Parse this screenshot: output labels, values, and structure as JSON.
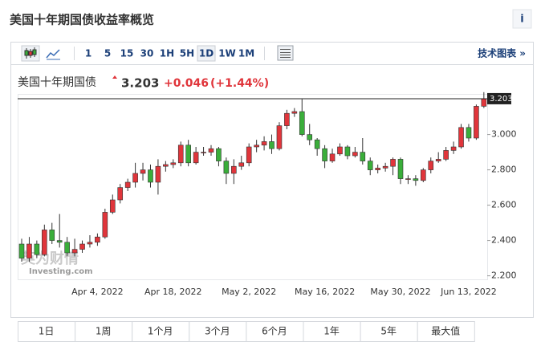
{
  "header": {
    "title": "美国十年期国债收益率概览",
    "info_icon": "i"
  },
  "toolbar": {
    "intervals": [
      "1",
      "5",
      "15",
      "30",
      "1H",
      "5H",
      "1D",
      "1W",
      "1M"
    ],
    "active_interval_index": 6,
    "link": "技术图表 »"
  },
  "quote": {
    "name": "美国十年期国债",
    "price": "3.203",
    "change": "+0.046",
    "change_percent": "(+1.44%)"
  },
  "watermark": {
    "cn": "英为财情",
    "en": "Investing.com"
  },
  "ranges": [
    "1日",
    "1周",
    "1个月",
    "3个月",
    "6个月",
    "1年",
    "5年",
    "最大值"
  ],
  "chart_data": {
    "type": "candlestick",
    "up_color": "#e0353b",
    "down_color": "#3aae3a",
    "categories": [
      null,
      null,
      null,
      null,
      null,
      null,
      null,
      null,
      null,
      null,
      "Apr 4, 2022",
      null,
      null,
      null,
      null,
      null,
      null,
      null,
      null,
      null,
      "Apr 18, 2022",
      null,
      null,
      null,
      null,
      null,
      null,
      null,
      null,
      null,
      "May 2, 2022",
      null,
      null,
      null,
      null,
      null,
      null,
      null,
      null,
      null,
      "May 16, 2022",
      null,
      null,
      null,
      null,
      null,
      null,
      null,
      null,
      null,
      "May 30, 2022",
      null,
      null,
      null,
      null,
      null,
      null,
      null,
      null,
      "Jun 13, 2022",
      null,
      null
    ],
    "open": [
      2.38,
      2.3,
      2.38,
      2.32,
      2.46,
      2.4,
      2.39,
      2.33,
      2.35,
      2.38,
      2.39,
      2.42,
      2.56,
      2.63,
      2.7,
      2.73,
      2.78,
      2.8,
      2.73,
      2.82,
      2.83,
      2.84,
      2.94,
      2.84,
      2.9,
      2.9,
      2.92,
      2.85,
      2.78,
      2.82,
      2.84,
      2.93,
      2.94,
      2.96,
      2.92,
      3.05,
      3.12,
      3.13,
      3.0,
      2.97,
      2.92,
      2.85,
      2.89,
      2.93,
      2.88,
      2.9,
      2.85,
      2.8,
      2.81,
      2.82,
      2.86,
      2.75,
      2.75,
      2.74,
      2.8,
      2.85,
      2.86,
      2.91,
      2.93,
      3.04,
      2.98,
      3.16
    ],
    "high": [
      2.41,
      2.42,
      2.4,
      2.49,
      2.5,
      2.55,
      2.42,
      2.41,
      2.4,
      2.43,
      2.44,
      2.58,
      2.66,
      2.72,
      2.75,
      2.84,
      2.84,
      2.83,
      2.86,
      2.85,
      2.86,
      2.96,
      2.97,
      2.93,
      2.93,
      2.94,
      2.93,
      2.87,
      2.86,
      2.88,
      2.95,
      2.97,
      2.99,
      3.0,
      3.07,
      3.14,
      3.15,
      3.2,
      3.06,
      2.98,
      2.94,
      2.92,
      2.95,
      2.94,
      2.93,
      2.98,
      2.87,
      2.83,
      2.84,
      2.87,
      2.87,
      2.77,
      2.77,
      2.81,
      2.87,
      2.9,
      2.93,
      2.96,
      3.06,
      3.06,
      3.17,
      3.24
    ],
    "low": [
      2.28,
      2.28,
      2.3,
      2.31,
      2.38,
      2.36,
      2.31,
      2.31,
      2.33,
      2.36,
      2.37,
      2.41,
      2.55,
      2.61,
      2.68,
      2.7,
      2.74,
      2.7,
      2.66,
      2.79,
      2.81,
      2.82,
      2.82,
      2.83,
      2.88,
      2.88,
      2.82,
      2.72,
      2.72,
      2.8,
      2.82,
      2.9,
      2.91,
      2.89,
      2.91,
      3.03,
      3.1,
      2.99,
      2.94,
      2.88,
      2.81,
      2.84,
      2.88,
      2.86,
      2.87,
      2.83,
      2.77,
      2.78,
      2.79,
      2.77,
      2.72,
      2.72,
      2.71,
      2.73,
      2.78,
      2.84,
      2.85,
      2.89,
      2.92,
      2.96,
      2.97,
      3.15
    ],
    "close": [
      2.3,
      2.38,
      2.32,
      2.46,
      2.4,
      2.39,
      2.33,
      2.35,
      2.38,
      2.39,
      2.42,
      2.56,
      2.63,
      2.7,
      2.73,
      2.78,
      2.8,
      2.73,
      2.82,
      2.83,
      2.84,
      2.94,
      2.84,
      2.9,
      2.9,
      2.92,
      2.85,
      2.78,
      2.82,
      2.84,
      2.93,
      2.94,
      2.96,
      2.92,
      3.05,
      3.12,
      3.13,
      3.0,
      2.97,
      2.92,
      2.85,
      2.89,
      2.93,
      2.88,
      2.9,
      2.85,
      2.8,
      2.81,
      2.82,
      2.86,
      2.75,
      2.75,
      2.74,
      2.8,
      2.85,
      2.86,
      2.91,
      2.93,
      3.04,
      2.98,
      3.16,
      3.203
    ],
    "ylim": [
      2.18,
      3.23
    ],
    "yticks": [
      {
        "value": 2.2,
        "label": "2.200"
      },
      {
        "value": 2.4,
        "label": "2.400"
      },
      {
        "value": 2.6,
        "label": "2.600"
      },
      {
        "value": 2.8,
        "label": "2.800"
      },
      {
        "value": 3.0,
        "label": "3.000"
      }
    ]
  }
}
